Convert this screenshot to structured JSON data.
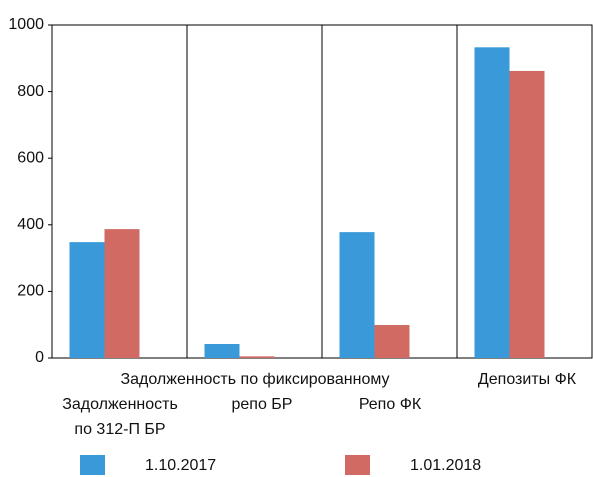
{
  "chart_data": {
    "type": "bar",
    "categories": [
      [
        "Задолженность",
        "по  312-П БР"
      ],
      [
        "Задолженность по  фиксированному",
        "репо БР"
      ],
      [
        "Репо ФК"
      ],
      [
        "Депозиты ФК"
      ]
    ],
    "series": [
      {
        "name": "1.10.2017",
        "color": "#3a9ad9",
        "values": [
          348,
          42,
          378,
          933
        ]
      },
      {
        "name": "1.01.2018",
        "color": "#d06a63",
        "values": [
          387,
          5,
          99,
          862
        ]
      }
    ],
    "ylim": [
      0,
      1000
    ],
    "yticks": [
      0,
      200,
      400,
      600,
      800,
      1000
    ]
  }
}
